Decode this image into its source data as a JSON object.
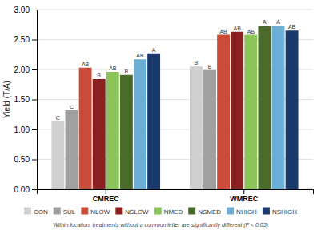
{
  "chart_data": {
    "type": "bar",
    "ylabel": "Yield (T/A)",
    "categories": [
      "CMREC",
      "WMREC"
    ],
    "series": [
      {
        "name": "CON",
        "color": "#d0d0d0",
        "values": [
          1.14,
          2.05
        ],
        "letters": [
          "C",
          "B"
        ]
      },
      {
        "name": "SUL",
        "color": "#a0a0a0",
        "values": [
          1.32,
          1.99
        ],
        "letters": [
          "C",
          "B"
        ]
      },
      {
        "name": "NLOW",
        "color": "#cc4c3b",
        "values": [
          2.03,
          2.58
        ],
        "letters": [
          "AB",
          "AB"
        ]
      },
      {
        "name": "NSLOW",
        "color": "#8b2020",
        "values": [
          1.84,
          2.63
        ],
        "letters": [
          "B",
          "AB"
        ]
      },
      {
        "name": "NMED",
        "color": "#8dc45a",
        "values": [
          1.96,
          2.58
        ],
        "letters": [
          "AB",
          "AB"
        ]
      },
      {
        "name": "NSMED",
        "color": "#4a6b2a",
        "values": [
          1.91,
          2.73
        ],
        "letters": [
          "B",
          "A"
        ]
      },
      {
        "name": "NHIGH",
        "color": "#6baed6",
        "values": [
          2.17,
          2.73
        ],
        "letters": [
          "AB",
          "A"
        ]
      },
      {
        "name": "NSHIGH",
        "color": "#1a3a6b",
        "values": [
          2.27,
          2.65
        ],
        "letters": [
          "A",
          "AB"
        ]
      }
    ],
    "ylim": [
      0,
      3.0
    ],
    "yticks": [
      {
        "value": 0.0,
        "label": "0.00"
      },
      {
        "value": 0.5,
        "label": "0.50"
      },
      {
        "value": 1.0,
        "label": "1.00"
      },
      {
        "value": 1.5,
        "label": "1.50"
      },
      {
        "value": 2.0,
        "label": "2.00"
      },
      {
        "value": 2.5,
        "label": "2.50"
      },
      {
        "value": 3.0,
        "label": "3.00"
      }
    ],
    "grid": true,
    "legend": "bottom",
    "annotations": [
      "Within location, treatments without a common letter are significantly different (P < 0.05)"
    ]
  }
}
